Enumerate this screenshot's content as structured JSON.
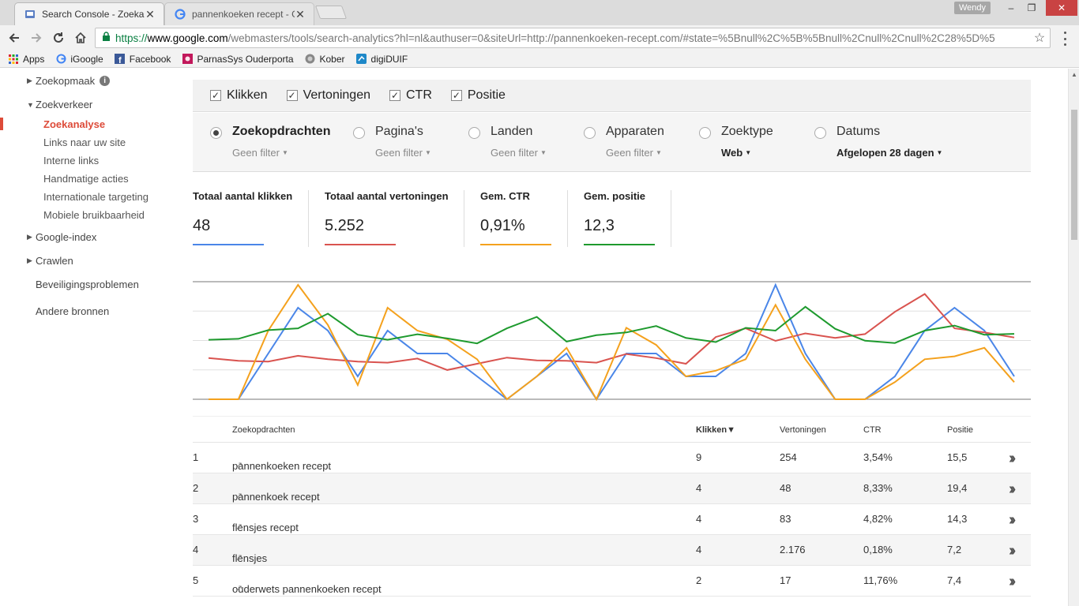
{
  "browser": {
    "tabs": [
      {
        "title": "Search Console - Zoekan",
        "active": true
      },
      {
        "title": "pannenkoeken recept - G",
        "active": false
      }
    ],
    "user": "Wendy",
    "url": {
      "scheme": "https://",
      "domain": "www.google.com",
      "rest": "/webmasters/tools/search-analytics?hl=nl&authuser=0&siteUrl=http://pannenkoeken-recept.com/#state=%5Bnull%2C%5B%5Bnull%2Cnull%2Cnull%2C28%5D%5"
    },
    "bookmarks": [
      "Apps",
      "iGoogle",
      "Facebook",
      "ParnasSys Ouderporta",
      "Kober",
      "digiDUIF"
    ]
  },
  "sidebar": {
    "zoekopmaak": "Zoekopmaak",
    "zoekverkeer": "Zoekverkeer",
    "sub_items": [
      "Zoekanalyse",
      "Links naar uw site",
      "Interne links",
      "Handmatige acties",
      "Internationale targeting",
      "Mobiele bruikbaarheid"
    ],
    "google_index": "Google-index",
    "crawlen": "Crawlen",
    "beveiliging": "Beveiligingsproblemen",
    "andere": "Andere bronnen"
  },
  "metrics": {
    "checkboxes": [
      "Klikken",
      "Vertoningen",
      "CTR",
      "Positie"
    ]
  },
  "dimensions": [
    {
      "label": "Zoekopdrachten",
      "filter": "Geen filter",
      "selected": true
    },
    {
      "label": "Pagina's",
      "filter": "Geen filter",
      "selected": false
    },
    {
      "label": "Landen",
      "filter": "Geen filter",
      "selected": false
    },
    {
      "label": "Apparaten",
      "filter": "Geen filter",
      "selected": false
    },
    {
      "label": "Zoektype",
      "filter": "Web",
      "selected": false
    },
    {
      "label": "Datums",
      "filter": "Afgelopen 28 dagen",
      "selected": false
    }
  ],
  "totals": [
    {
      "label": "Totaal aantal klikken",
      "value": "48",
      "color": "#4a86e8"
    },
    {
      "label": "Totaal aantal vertoningen",
      "value": "5.252",
      "color": "#d9534f"
    },
    {
      "label": "Gem. CTR",
      "value": "0,91%",
      "color": "#f4a11d"
    },
    {
      "label": "Gem. positie",
      "value": "12,3",
      "color": "#1e9a2e"
    }
  ],
  "chart_data": {
    "type": "line",
    "series": [
      {
        "color": "#4a86e8",
        "values": [
          0,
          0,
          2,
          4,
          3,
          1,
          3,
          2,
          2,
          1,
          0,
          1,
          2,
          0,
          2,
          2,
          1,
          1,
          2,
          5,
          2,
          0,
          0,
          1,
          3,
          4,
          3,
          1
        ]
      },
      {
        "color": "#d9534f",
        "values": [
          180,
          168,
          165,
          190,
          175,
          165,
          160,
          178,
          128,
          155,
          182,
          170,
          168,
          160,
          198,
          180,
          155,
          272,
          310,
          255,
          288,
          268,
          285,
          382,
          460,
          310,
          292,
          270
        ]
      },
      {
        "color": "#f4a11d",
        "values": [
          0,
          0,
          12,
          20,
          13,
          2.5,
          16,
          12,
          10.5,
          7,
          0,
          4,
          9,
          0,
          12.5,
          9.5,
          4,
          5,
          7,
          16.5,
          7,
          0,
          0,
          3,
          7,
          7.5,
          9,
          3
        ]
      },
      {
        "color": "#1e9a2e",
        "values": [
          13,
          13.2,
          15.1,
          15.5,
          18.7,
          14.1,
          13,
          14.2,
          13.3,
          12.2,
          15.5,
          18,
          12.6,
          14,
          14.6,
          16,
          13.4,
          12.5,
          15.6,
          15,
          20.2,
          15.4,
          12.8,
          12.3,
          15,
          16.1,
          14.1,
          14.3
        ]
      }
    ]
  },
  "table": {
    "headers": {
      "query": "Zoekopdrachten",
      "clicks": "Klikken▼",
      "impressions": "Vertoningen",
      "ctr": "CTR",
      "position": "Positie"
    },
    "rows": [
      {
        "n": "1",
        "query": "pannenkoeken recept",
        "clicks": "9",
        "impressions": "254",
        "ctr": "3,54%",
        "position": "15,5"
      },
      {
        "n": "2",
        "query": "pannenkoek recept",
        "clicks": "4",
        "impressions": "48",
        "ctr": "8,33%",
        "position": "19,4"
      },
      {
        "n": "3",
        "query": "flensjes recept",
        "clicks": "4",
        "impressions": "83",
        "ctr": "4,82%",
        "position": "14,3"
      },
      {
        "n": "4",
        "query": "flensjes",
        "clicks": "4",
        "impressions": "2.176",
        "ctr": "0,18%",
        "position": "7,2"
      },
      {
        "n": "5",
        "query": "ouderwets pannenkoeken recept",
        "clicks": "2",
        "impressions": "17",
        "ctr": "11,76%",
        "position": "7,4"
      }
    ]
  }
}
